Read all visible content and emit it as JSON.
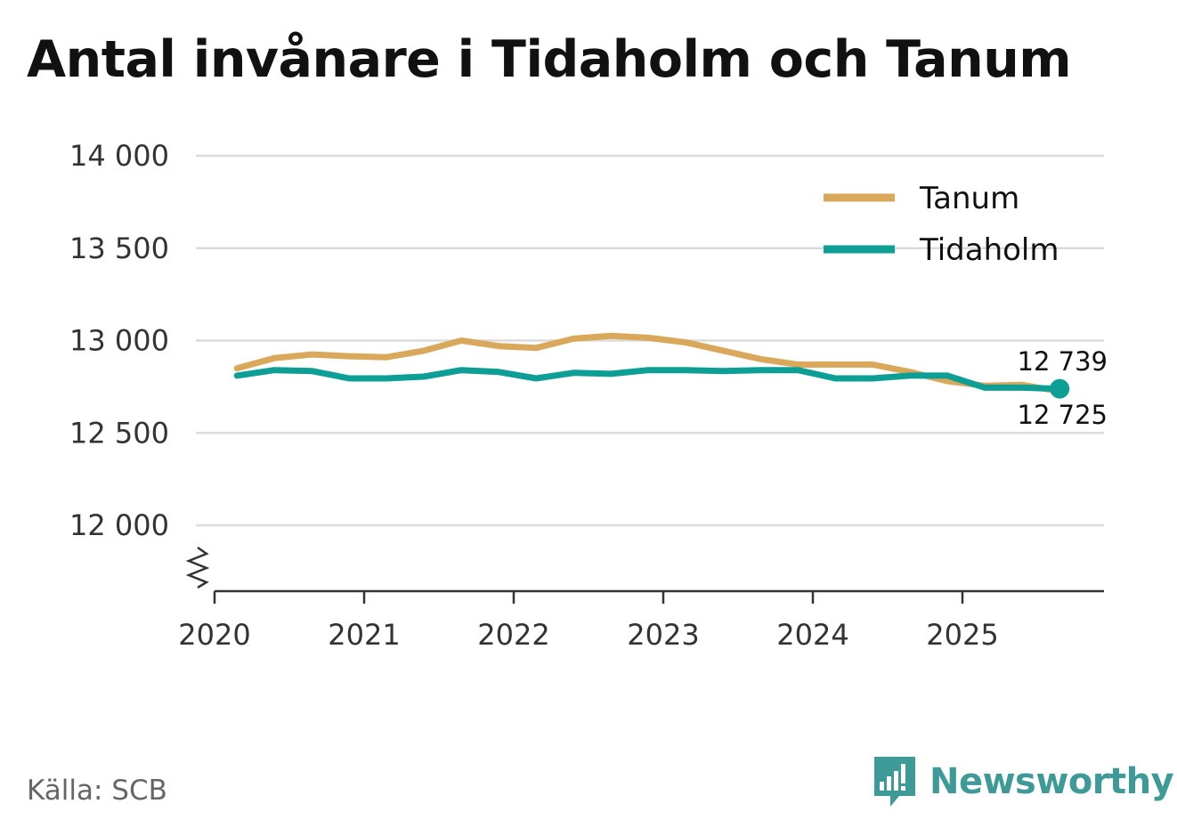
{
  "title": "Antal invånare i Tidaholm och Tanum",
  "source": "Källa: SCB",
  "brand": {
    "name": "Newsworthy",
    "icon": "newsworthy-chart-bubble-icon",
    "color": "#3d9a97"
  },
  "chart_data": {
    "type": "line",
    "ylim": [
      11600,
      14000
    ],
    "yticks": [
      12000,
      12500,
      13000,
      13500,
      14000
    ],
    "ytick_labels": [
      "12 000",
      "12 500",
      "13 000",
      "13 500",
      "14 000"
    ],
    "xlim": [
      2020.0,
      2025.95
    ],
    "xticks": [
      2020,
      2021,
      2022,
      2023,
      2024,
      2025
    ],
    "xtick_labels": [
      "2020",
      "2021",
      "2022",
      "2023",
      "2024",
      "2025"
    ],
    "axis_break": true,
    "grid": true,
    "legend_position": "top-right",
    "x": [
      2020.15,
      2020.4,
      2020.65,
      2020.9,
      2021.15,
      2021.4,
      2021.65,
      2021.9,
      2022.15,
      2022.4,
      2022.65,
      2022.9,
      2023.15,
      2023.4,
      2023.65,
      2023.9,
      2024.15,
      2024.4,
      2024.65,
      2024.9,
      2025.15,
      2025.4,
      2025.65
    ],
    "series": [
      {
        "name": "Tanum",
        "color": "#d9a85b",
        "values": [
          12850,
          12905,
          12925,
          12915,
          12910,
          12945,
          13000,
          12970,
          12960,
          13010,
          13025,
          13015,
          12990,
          12945,
          12900,
          12870,
          12870,
          12870,
          12830,
          12780,
          12755,
          12760,
          12725
        ]
      },
      {
        "name": "Tidaholm",
        "color": "#0d9f96",
        "values": [
          12810,
          12840,
          12835,
          12795,
          12795,
          12805,
          12840,
          12830,
          12795,
          12825,
          12820,
          12840,
          12840,
          12835,
          12840,
          12840,
          12795,
          12795,
          12810,
          12810,
          12745,
          12745,
          12739
        ]
      }
    ],
    "end_labels": {
      "upper": "12 739",
      "lower": "12 725"
    }
  }
}
